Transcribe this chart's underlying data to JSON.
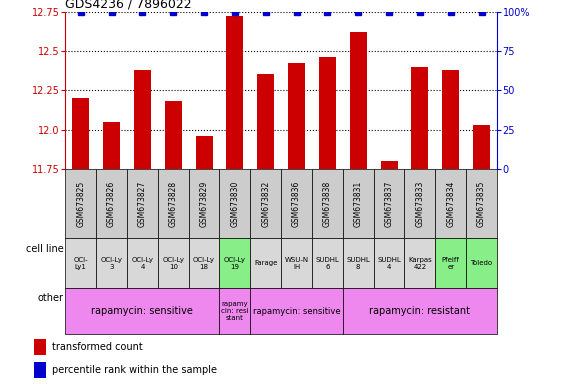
{
  "title": "GDS4236 / 7896022",
  "samples": [
    "GSM673825",
    "GSM673826",
    "GSM673827",
    "GSM673828",
    "GSM673829",
    "GSM673830",
    "GSM673832",
    "GSM673836",
    "GSM673838",
    "GSM673831",
    "GSM673837",
    "GSM673833",
    "GSM673834",
    "GSM673835"
  ],
  "transformed_counts": [
    12.2,
    12.05,
    12.38,
    12.18,
    11.96,
    12.72,
    12.35,
    12.42,
    12.46,
    12.62,
    11.8,
    12.4,
    12.38,
    12.03
  ],
  "percentile_ranks": [
    100,
    100,
    100,
    100,
    100,
    100,
    100,
    100,
    100,
    100,
    100,
    100,
    100,
    100
  ],
  "ylim_lo": 11.75,
  "ylim_hi": 12.75,
  "yticks_left": [
    11.75,
    12.0,
    12.25,
    12.5,
    12.75
  ],
  "y2ticks": [
    0,
    25,
    50,
    75,
    100
  ],
  "bar_color": "#cc0000",
  "dot_color": "#0000cc",
  "cell_lines": [
    "OCI-\nLy1",
    "OCI-Ly\n3",
    "OCI-Ly\n4",
    "OCI-Ly\n10",
    "OCI-Ly\n18",
    "OCI-Ly\n19",
    "Farage",
    "WSU-N\nIH",
    "SUDHL\n6",
    "SUDHL\n8",
    "SUDHL\n4",
    "Karpas\n422",
    "Pfeiff\ner",
    "Toledo"
  ],
  "cell_line_colors": [
    "#d8d8d8",
    "#d8d8d8",
    "#d8d8d8",
    "#d8d8d8",
    "#d8d8d8",
    "#88ee88",
    "#d8d8d8",
    "#d8d8d8",
    "#d8d8d8",
    "#d8d8d8",
    "#d8d8d8",
    "#d8d8d8",
    "#88ee88",
    "#88ee88"
  ],
  "sample_bg_color": "#cccccc",
  "other_groups": [
    {
      "label": "rapamycin: sensitive",
      "start": 0,
      "end": 5,
      "fontsize": 7
    },
    {
      "label": "rapamy\ncin: resi\nstant",
      "start": 5,
      "end": 6,
      "fontsize": 5.0
    },
    {
      "label": "rapamycin: sensitive",
      "start": 6,
      "end": 9,
      "fontsize": 6
    },
    {
      "label": "rapamycin: resistant",
      "start": 9,
      "end": 14,
      "fontsize": 7
    }
  ],
  "other_color": "#ee88ee",
  "legend_items": [
    {
      "color": "#cc0000",
      "label": "transformed count"
    },
    {
      "color": "#0000cc",
      "label": "percentile rank within the sample"
    }
  ]
}
